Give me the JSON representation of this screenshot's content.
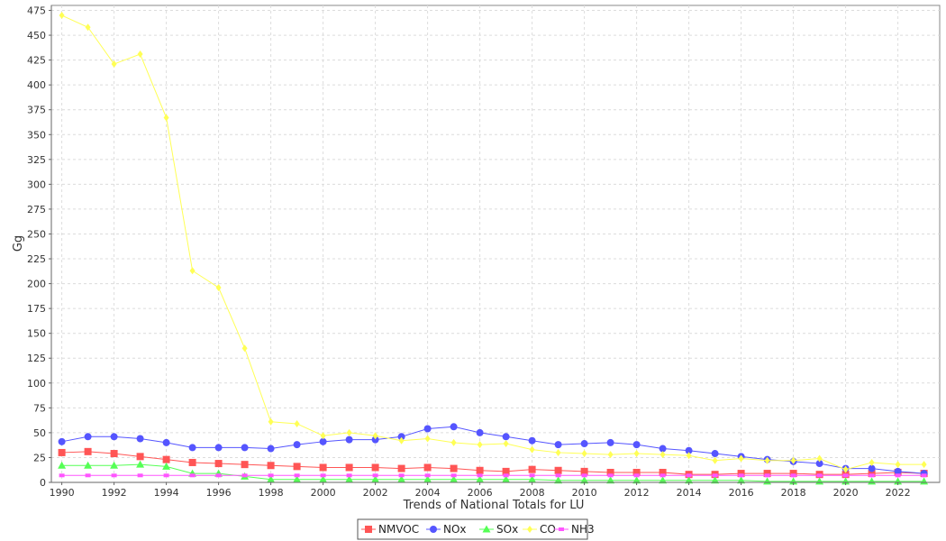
{
  "chart_data": {
    "type": "line",
    "title": "",
    "xlabel": "Trends of National Totals for LU",
    "ylabel": "Gg",
    "xlim": [
      1989.6,
      2023.6
    ],
    "ylim": [
      0,
      480
    ],
    "grid": true,
    "legend_placement": "bottom-center",
    "x": [
      1990,
      1991,
      1992,
      1993,
      1994,
      1995,
      1996,
      1997,
      1998,
      1999,
      2000,
      2001,
      2002,
      2003,
      2004,
      2005,
      2006,
      2007,
      2008,
      2009,
      2010,
      2011,
      2012,
      2013,
      2014,
      2015,
      2016,
      2017,
      2018,
      2019,
      2020,
      2021,
      2022,
      2023
    ],
    "x_ticks": [
      "1990",
      "1992",
      "1994",
      "1996",
      "1998",
      "2000",
      "2002",
      "2004",
      "2006",
      "2008",
      "2010",
      "2012",
      "2014",
      "2016",
      "2018",
      "2020",
      "2022"
    ],
    "y_ticks": [
      "0",
      "25",
      "50",
      "75",
      "100",
      "125",
      "150",
      "175",
      "200",
      "225",
      "250",
      "275",
      "300",
      "325",
      "350",
      "375",
      "400",
      "425",
      "450",
      "475"
    ],
    "series": [
      {
        "name": "NMVOC",
        "color": "#ff5555",
        "marker": "square",
        "values": [
          30,
          31,
          29,
          26,
          23,
          20,
          19,
          18,
          17,
          16,
          15,
          15,
          15,
          14,
          15,
          14,
          12,
          11,
          13,
          12,
          11,
          10,
          10,
          10,
          8,
          8,
          9,
          9,
          9,
          8,
          8,
          9,
          10,
          9
        ]
      },
      {
        "name": "NOx",
        "color": "#5555ff",
        "marker": "circle",
        "values": [
          41,
          46,
          46,
          44,
          40,
          35,
          35,
          35,
          34,
          38,
          41,
          43,
          43,
          46,
          54,
          56,
          50,
          46,
          42,
          38,
          39,
          40,
          38,
          34,
          32,
          29,
          26,
          23,
          21,
          19,
          14,
          14,
          11,
          9
        ]
      },
      {
        "name": "SOx",
        "color": "#55ff55",
        "marker": "triangle-up",
        "values": [
          17,
          17,
          17,
          18,
          16,
          9,
          9,
          6,
          3,
          3,
          3,
          3,
          3,
          3,
          3,
          3,
          3,
          3,
          3,
          2,
          2,
          2,
          2,
          2,
          2,
          2,
          2,
          1,
          1,
          1,
          1,
          1,
          1,
          1
        ]
      },
      {
        "name": "CO",
        "color": "#ffff55",
        "marker": "diamond",
        "values": [
          470,
          458,
          421,
          431,
          367,
          213,
          196,
          135,
          61,
          59,
          47,
          50,
          47,
          42,
          44,
          40,
          38,
          39,
          33,
          30,
          29,
          28,
          29,
          28,
          27,
          22,
          24,
          22,
          22,
          24,
          13,
          20,
          18,
          18
        ]
      },
      {
        "name": "NH3",
        "color": "#ff55ff",
        "marker": "square-small",
        "values": [
          7,
          7,
          7,
          7,
          7,
          7,
          7,
          7,
          7,
          7,
          7,
          7,
          7,
          7,
          7,
          7,
          7,
          7,
          7,
          7,
          7,
          7,
          7,
          7,
          7,
          7,
          7,
          7,
          7,
          7,
          7,
          7,
          7,
          7
        ]
      }
    ]
  }
}
